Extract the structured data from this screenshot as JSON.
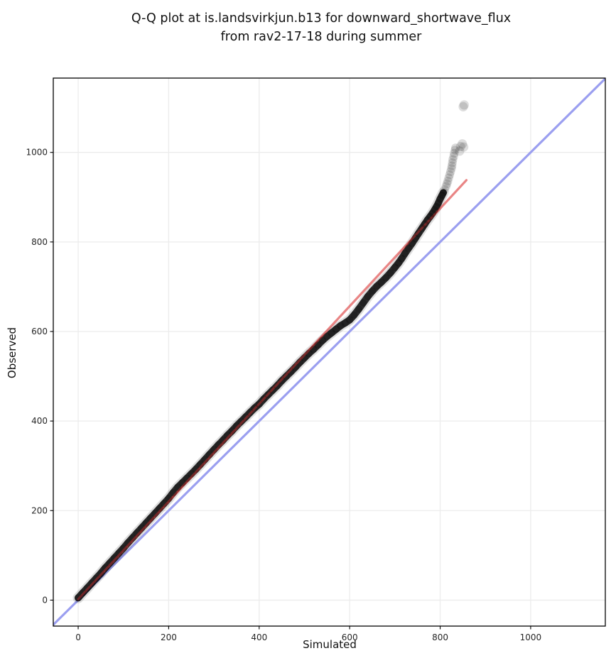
{
  "title": {
    "line1": "Q-Q plot at is.landsvirkjun.b13 for downward_shortwave_flux",
    "line2": "from rav2-17-18 during summer"
  },
  "colors": {
    "background": "#ffffff",
    "grid": "#ececec",
    "spine": "#000000",
    "identity_line": "#9b9ff0",
    "fit_line": "#dc3a3a",
    "points": "#000000"
  },
  "chart_data": {
    "type": "scatter",
    "title": "Q-Q plot at is.landsvirkjun.b13 for downward_shortwave_flux from rav2-17-18 during summer",
    "xlabel": "Simulated",
    "ylabel": "Observed",
    "xlim": [
      -55,
      1165
    ],
    "ylim": [
      -58,
      1166
    ],
    "xticks": [
      0,
      200,
      400,
      600,
      800,
      1000
    ],
    "yticks": [
      0,
      200,
      400,
      600,
      800,
      1000
    ],
    "grid": true,
    "legend": false,
    "identity_line": {
      "from": [
        -58,
        -58
      ],
      "to": [
        1166,
        1166
      ]
    },
    "fit_line": {
      "from": [
        0,
        2
      ],
      "to": [
        858,
        938
      ]
    },
    "series": [
      {
        "name": "quantile-band",
        "points": [
          [
            0,
            5
          ],
          [
            10,
            16
          ],
          [
            20,
            27
          ],
          [
            30,
            38
          ],
          [
            40,
            49
          ],
          [
            50,
            60
          ],
          [
            60,
            72
          ],
          [
            70,
            83
          ],
          [
            80,
            94
          ],
          [
            90,
            105
          ],
          [
            100,
            116
          ],
          [
            110,
            128
          ],
          [
            120,
            139
          ],
          [
            130,
            150
          ],
          [
            140,
            161
          ],
          [
            150,
            172
          ],
          [
            160,
            183
          ],
          [
            170,
            194
          ],
          [
            180,
            205
          ],
          [
            190,
            216
          ],
          [
            200,
            227
          ],
          [
            210,
            240
          ],
          [
            220,
            252
          ],
          [
            230,
            262
          ],
          [
            240,
            272
          ],
          [
            250,
            282
          ],
          [
            260,
            292
          ],
          [
            270,
            303
          ],
          [
            280,
            314
          ],
          [
            290,
            325
          ],
          [
            300,
            336
          ],
          [
            310,
            347
          ],
          [
            320,
            357
          ],
          [
            330,
            368
          ],
          [
            340,
            378
          ],
          [
            350,
            389
          ],
          [
            360,
            399
          ],
          [
            370,
            409
          ],
          [
            380,
            419
          ],
          [
            390,
            429
          ],
          [
            400,
            438
          ],
          [
            410,
            449
          ],
          [
            420,
            459
          ],
          [
            430,
            469
          ],
          [
            440,
            479
          ],
          [
            450,
            490
          ],
          [
            460,
            500
          ],
          [
            470,
            510
          ],
          [
            480,
            520
          ],
          [
            490,
            531
          ],
          [
            500,
            541
          ],
          [
            510,
            551
          ],
          [
            520,
            560
          ],
          [
            530,
            570
          ],
          [
            540,
            580
          ],
          [
            550,
            589
          ],
          [
            560,
            597
          ],
          [
            570,
            605
          ],
          [
            580,
            613
          ],
          [
            590,
            619
          ],
          [
            600,
            626
          ],
          [
            610,
            637
          ],
          [
            620,
            650
          ],
          [
            630,
            664
          ],
          [
            640,
            678
          ],
          [
            650,
            690
          ],
          [
            660,
            701
          ],
          [
            670,
            710
          ],
          [
            680,
            720
          ],
          [
            690,
            731
          ],
          [
            700,
            743
          ],
          [
            708,
            753
          ],
          [
            715,
            763
          ],
          [
            722,
            774
          ],
          [
            730,
            786
          ],
          [
            738,
            797
          ],
          [
            745,
            808
          ],
          [
            752,
            819
          ],
          [
            760,
            831
          ],
          [
            766,
            840
          ],
          [
            772,
            849
          ],
          [
            778,
            857
          ],
          [
            783,
            864
          ],
          [
            788,
            872
          ],
          [
            792,
            879
          ],
          [
            796,
            887
          ],
          [
            800,
            896
          ],
          [
            804,
            904
          ],
          [
            807,
            910
          ]
        ]
      },
      {
        "name": "upper-tail",
        "points": [
          [
            810,
            917
          ],
          [
            813,
            924
          ],
          [
            815,
            930
          ],
          [
            817,
            936
          ],
          [
            819,
            943
          ],
          [
            821,
            950
          ],
          [
            823,
            957
          ],
          [
            825,
            964
          ],
          [
            826,
            970
          ],
          [
            827,
            977
          ],
          [
            828,
            984
          ],
          [
            830,
            991
          ],
          [
            831,
            998
          ],
          [
            833,
            1005
          ],
          [
            834,
            1010
          ]
        ]
      },
      {
        "name": "outliers",
        "points": [
          [
            843,
            1003
          ],
          [
            845,
            1013
          ],
          [
            849,
            1019
          ],
          [
            852,
            1012
          ],
          [
            851,
            1102
          ],
          [
            853,
            1106
          ]
        ]
      }
    ]
  }
}
